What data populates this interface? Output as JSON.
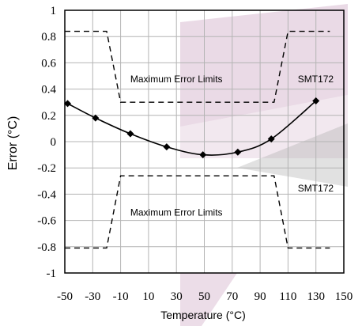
{
  "chart_data": {
    "type": "line",
    "xlabel": "Temperature (°C)",
    "ylabel": "Error (°C)",
    "xlim": [
      -50,
      150
    ],
    "ylim": [
      -1,
      1
    ],
    "x_ticks": [
      "-50",
      "-30",
      "-10",
      "10",
      "30",
      "50",
      "70",
      "90",
      "110",
      "130",
      "150"
    ],
    "y_ticks": [
      "1",
      "0.8",
      "0.6",
      "0.4",
      "0.2",
      "0",
      "-0.2",
      "-0.4",
      "-0.6",
      "-0.8",
      "-1"
    ],
    "grid": true,
    "measured": {
      "x": [
        -48,
        -28,
        -3,
        23,
        49,
        74,
        98,
        130
      ],
      "y": [
        0.29,
        0.18,
        0.06,
        -0.04,
        -0.1,
        -0.08,
        0.02,
        0.31
      ]
    },
    "upper_limit": {
      "x": [
        -50,
        -20,
        -10,
        100,
        110,
        140
      ],
      "y": [
        0.84,
        0.84,
        0.3,
        0.3,
        0.84,
        0.84
      ]
    },
    "lower_limit": {
      "x": [
        -50,
        -20,
        -10,
        100,
        110,
        140
      ],
      "y": [
        -0.81,
        -0.81,
        -0.26,
        -0.26,
        -0.81,
        -0.81
      ]
    },
    "annotations": [
      {
        "text": "Maximum Error Limits",
        "x": 30,
        "y": 0.475
      },
      {
        "text": "SMT172",
        "x": 117,
        "y": 0.475
      },
      {
        "text": "Maximum Error Limits",
        "x": 30,
        "y": -0.54
      },
      {
        "text": "SMT172",
        "x": 117,
        "y": -0.355
      }
    ],
    "colors": {
      "line": "#000000",
      "grid": "#b4b4b4",
      "watermark": "#d9bcd2"
    }
  }
}
